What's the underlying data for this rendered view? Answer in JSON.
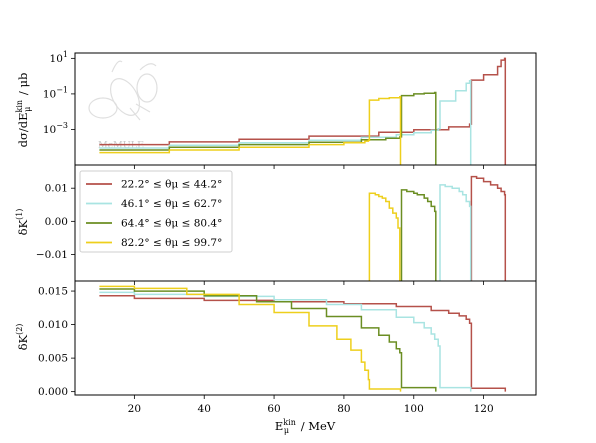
{
  "chart_data": [
    {
      "type": "line",
      "panel": "top",
      "ylabel": "dσ/dE",
      "ylabel_sub": "μ",
      "ylabel_sup": "kin",
      "ylabel_unit": "/ μb",
      "yscale": "log",
      "ylim": [
        1e-05,
        20
      ],
      "yticks": [
        {
          "value": 10,
          "base": "10",
          "exp": "1"
        },
        {
          "value": 0.1,
          "base": "10",
          "exp": "−1"
        },
        {
          "value": 0.001,
          "base": "10",
          "exp": "−3"
        }
      ],
      "watermark": "McMULE",
      "series": [
        {
          "name": "22.2° ≤ θμ ≤ 44.2°",
          "color": "#b5514a",
          "points": [
            [
              10,
              0.00014
            ],
            [
              30,
              0.0002
            ],
            [
              50,
              0.00028
            ],
            [
              70,
              0.00042
            ],
            [
              90,
              0.0007
            ],
            [
              100,
              0.00095
            ],
            [
              110,
              0.0014
            ],
            [
              116,
              0.002
            ],
            [
              116.5,
              0.6
            ],
            [
              120,
              1.2
            ],
            [
              124,
              3.5
            ],
            [
              125,
              8
            ],
            [
              126,
              10
            ],
            [
              126.2,
              0
            ]
          ]
        },
        {
          "name": "46.1° ≤ θμ ≤ 62.7°",
          "color": "#a9e4e2",
          "points": [
            [
              10,
              9e-05
            ],
            [
              30,
              0.00013
            ],
            [
              50,
              0.00018
            ],
            [
              70,
              0.00025
            ],
            [
              85,
              0.00036
            ],
            [
              95,
              0.0005
            ],
            [
              100,
              0.00065
            ],
            [
              105,
              0.0009
            ],
            [
              107,
              0.0011
            ],
            [
              107.5,
              0.04
            ],
            [
              112,
              0.15
            ],
            [
              115,
              0.4
            ],
            [
              116,
              0.55
            ],
            [
              116.3,
              0
            ]
          ]
        },
        {
          "name": "64.4° ≤ θμ ≤ 80.4°",
          "color": "#6b8e23",
          "points": [
            [
              10,
              7e-05
            ],
            [
              30,
              0.0001
            ],
            [
              50,
              0.00014
            ],
            [
              70,
              0.00019
            ],
            [
              85,
              0.00026
            ],
            [
              92,
              0.00032
            ],
            [
              96,
              0.00038
            ],
            [
              96.5,
              0.08
            ],
            [
              100,
              0.1
            ],
            [
              103,
              0.11
            ],
            [
              106,
              0.12
            ],
            [
              106.3,
              0
            ]
          ]
        },
        {
          "name": "82.2° ≤ θμ ≤ 99.7°",
          "color": "#eecf1c",
          "points": [
            [
              10,
              5e-05
            ],
            [
              30,
              7e-05
            ],
            [
              50,
              0.0001
            ],
            [
              70,
              0.00014
            ],
            [
              80,
              0.00018
            ],
            [
              86,
              0.00022
            ],
            [
              87,
              0.00025
            ],
            [
              87.3,
              0.045
            ],
            [
              90,
              0.055
            ],
            [
              93,
              0.06
            ],
            [
              96,
              0.07
            ],
            [
              96.2,
              0
            ]
          ]
        }
      ]
    },
    {
      "type": "line",
      "panel": "middle",
      "ylabel": "δK",
      "ylabel_sup": "(1)",
      "ylim": [
        -0.018,
        0.017
      ],
      "yticks": [
        {
          "value": 0.01,
          "label": "0.01"
        },
        {
          "value": 0,
          "label": "0.00"
        },
        {
          "value": -0.01,
          "label": "−0.01"
        }
      ],
      "legend_position": "upper-left",
      "series": [
        {
          "name": "22.2° ≤ θμ ≤ 44.2°",
          "color": "#b5514a",
          "points": [
            [
              116.5,
              -0.018
            ],
            [
              116.5,
              0.0135
            ],
            [
              118,
              0.013
            ],
            [
              120,
              0.012
            ],
            [
              122,
              0.011
            ],
            [
              124,
              0.01
            ],
            [
              125,
              0.009
            ],
            [
              126,
              0.008
            ],
            [
              126.2,
              -0.018
            ]
          ]
        },
        {
          "name": "46.1° ≤ θμ ≤ 62.7°",
          "color": "#a9e4e2",
          "points": [
            [
              107.5,
              -0.018
            ],
            [
              107.5,
              0.011
            ],
            [
              109,
              0.0105
            ],
            [
              111,
              0.01
            ],
            [
              113,
              0.009
            ],
            [
              114,
              0.008
            ],
            [
              115,
              0.006
            ],
            [
              116,
              0.0045
            ],
            [
              116.3,
              -0.018
            ]
          ]
        },
        {
          "name": "64.4° ≤ θμ ≤ 80.4°",
          "color": "#6b8e23",
          "points": [
            [
              96.5,
              -0.018
            ],
            [
              96.5,
              0.0095
            ],
            [
              98,
              0.009
            ],
            [
              100,
              0.0085
            ],
            [
              101,
              0.008
            ],
            [
              103,
              0.007
            ],
            [
              104,
              0.006
            ],
            [
              105,
              0.0045
            ],
            [
              106,
              0.003
            ],
            [
              106.3,
              -0.018
            ]
          ]
        },
        {
          "name": "82.2° ≤ θμ ≤ 99.7°",
          "color": "#eecf1c",
          "points": [
            [
              87.3,
              -0.018
            ],
            [
              87.3,
              0.0085
            ],
            [
              89,
              0.008
            ],
            [
              90,
              0.0075
            ],
            [
              91,
              0.007
            ],
            [
              92,
              0.006
            ],
            [
              93,
              0.004
            ],
            [
              94,
              0.0025
            ],
            [
              95,
              0.001
            ],
            [
              95.5,
              -0.002
            ],
            [
              96,
              -0.018
            ]
          ]
        }
      ]
    },
    {
      "type": "line",
      "panel": "bottom",
      "ylabel": "δK",
      "ylabel_sup": "(2)",
      "xlabel": "E",
      "xlabel_sub": "μ",
      "xlabel_sup": "kin",
      "xlabel_unit": "/ MeV",
      "xlim": [
        3,
        135
      ],
      "xticks": [
        20,
        40,
        60,
        80,
        100,
        120
      ],
      "ylim": [
        -0.0005,
        0.0165
      ],
      "yticks": [
        {
          "value": 0.015,
          "label": "0.015"
        },
        {
          "value": 0.01,
          "label": "0.010"
        },
        {
          "value": 0.005,
          "label": "0.005"
        },
        {
          "value": 0,
          "label": "0.000"
        }
      ],
      "series": [
        {
          "name": "22.2° ≤ θμ ≤ 44.2°",
          "color": "#b5514a",
          "points": [
            [
              10,
              0.0143
            ],
            [
              20,
              0.0139
            ],
            [
              40,
              0.0136
            ],
            [
              60,
              0.0134
            ],
            [
              80,
              0.0131
            ],
            [
              95,
              0.0127
            ],
            [
              105,
              0.0121
            ],
            [
              110,
              0.0117
            ],
            [
              113,
              0.0113
            ],
            [
              115,
              0.0108
            ],
            [
              116,
              0.0102
            ],
            [
              116.5,
              0.0005
            ],
            [
              126,
              0.0005
            ],
            [
              126.2,
              0
            ]
          ]
        },
        {
          "name": "46.1° ≤ θμ ≤ 62.7°",
          "color": "#a9e4e2",
          "points": [
            [
              10,
              0.0148
            ],
            [
              20,
              0.0145
            ],
            [
              40,
              0.0142
            ],
            [
              60,
              0.0137
            ],
            [
              75,
              0.013
            ],
            [
              85,
              0.0122
            ],
            [
              95,
              0.0111
            ],
            [
              100,
              0.0103
            ],
            [
              103,
              0.0095
            ],
            [
              105,
              0.0086
            ],
            [
              106,
              0.0078
            ],
            [
              107,
              0.0068
            ],
            [
              107.5,
              0.0006
            ],
            [
              116,
              0.0006
            ],
            [
              116.3,
              0
            ]
          ]
        },
        {
          "name": "64.4° ≤ θμ ≤ 80.4°",
          "color": "#6b8e23",
          "points": [
            [
              10,
              0.0153
            ],
            [
              20,
              0.015
            ],
            [
              40,
              0.0143
            ],
            [
              55,
              0.0134
            ],
            [
              65,
              0.0124
            ],
            [
              75,
              0.0112
            ],
            [
              85,
              0.0095
            ],
            [
              90,
              0.0084
            ],
            [
              93,
              0.0074
            ],
            [
              95,
              0.0064
            ],
            [
              96,
              0.0058
            ],
            [
              96.5,
              0.0006
            ],
            [
              106,
              0.0006
            ],
            [
              106.3,
              0
            ]
          ]
        },
        {
          "name": "82.2° ≤ θμ ≤ 99.7°",
          "color": "#eecf1c",
          "points": [
            [
              10,
              0.0157
            ],
            [
              20,
              0.0154
            ],
            [
              35,
              0.0145
            ],
            [
              50,
              0.013
            ],
            [
              60,
              0.0118
            ],
            [
              70,
              0.0098
            ],
            [
              78,
              0.0078
            ],
            [
              82,
              0.0062
            ],
            [
              85,
              0.0044
            ],
            [
              86,
              0.0032
            ],
            [
              87,
              0.0018
            ],
            [
              87.3,
              0.0004
            ],
            [
              96,
              0.0004
            ],
            [
              96.2,
              0
            ]
          ]
        }
      ]
    }
  ]
}
